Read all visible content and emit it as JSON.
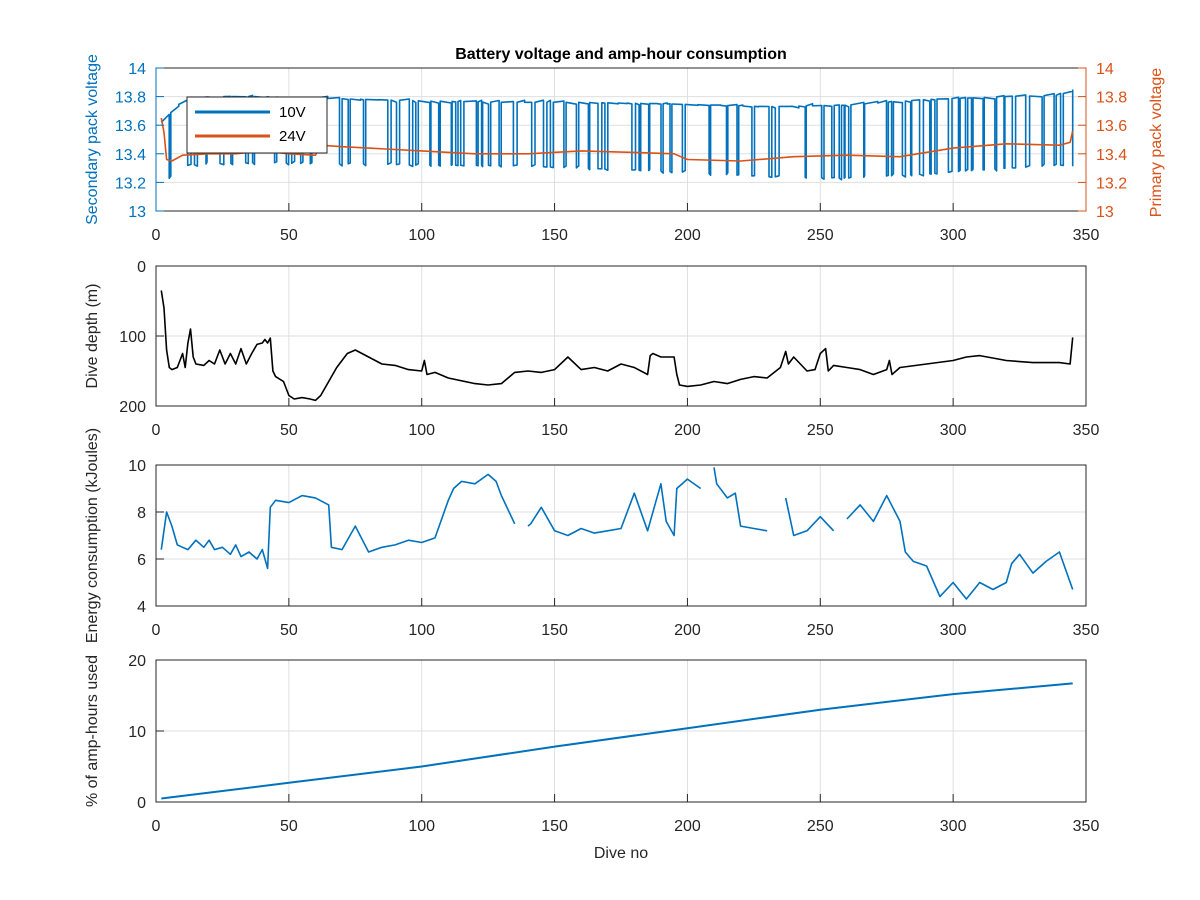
{
  "colors": {
    "blue": "#0072bd",
    "orange": "#d95319",
    "black": "#000000",
    "axis": "#262626",
    "grid": "#dfdfdf"
  },
  "chart_data": [
    {
      "type": "line",
      "title": "Battery voltage and amp-hour consumption",
      "xlabel": "",
      "ylabel": "Secondary pack voltage",
      "ylabel_right": "Primary pack voltage",
      "xlim": [
        0,
        350
      ],
      "ylim": [
        13,
        14
      ],
      "ylim_right": [
        13,
        14
      ],
      "xticks": [
        0,
        50,
        100,
        150,
        200,
        250,
        300,
        350
      ],
      "yticks": [
        13,
        13.2,
        13.4,
        13.6,
        13.8,
        14
      ],
      "yticks_right": [
        13,
        13.2,
        13.4,
        13.6,
        13.8,
        14
      ],
      "grid": true,
      "legend": "top-left",
      "series": [
        {
          "name": "10V",
          "axis": "left",
          "color": "#0072bd",
          "style": "switching",
          "x": [
            2,
            4,
            6,
            8,
            12,
            20,
            40,
            60,
            80,
            100,
            130,
            160,
            190,
            210,
            230,
            260,
            290,
            320,
            340,
            345
          ],
          "high": [
            13.62,
            13.65,
            13.7,
            13.74,
            13.78,
            13.8,
            13.8,
            13.79,
            13.78,
            13.77,
            13.76,
            13.76,
            13.75,
            13.74,
            13.73,
            13.74,
            13.78,
            13.8,
            13.81,
            13.85
          ],
          "low": [
            13.2,
            13.2,
            13.26,
            13.3,
            13.32,
            13.33,
            13.34,
            13.33,
            13.33,
            13.32,
            13.32,
            13.3,
            13.28,
            13.26,
            13.24,
            13.23,
            13.26,
            13.3,
            13.32,
            13.33
          ]
        },
        {
          "name": "24V",
          "axis": "right",
          "color": "#d95319",
          "x": [
            2,
            3,
            4,
            6,
            10,
            20,
            30,
            40,
            50,
            60,
            62,
            70,
            80,
            100,
            120,
            140,
            160,
            180,
            195,
            200,
            220,
            240,
            260,
            280,
            300,
            320,
            340,
            344,
            345
          ],
          "y": [
            13.65,
            13.55,
            13.36,
            13.35,
            13.39,
            13.4,
            13.4,
            13.42,
            13.4,
            13.39,
            13.46,
            13.45,
            13.44,
            13.42,
            13.4,
            13.4,
            13.42,
            13.41,
            13.4,
            13.36,
            13.35,
            13.38,
            13.39,
            13.38,
            13.44,
            13.47,
            13.46,
            13.48,
            13.56
          ]
        }
      ]
    },
    {
      "type": "line",
      "title": "",
      "xlabel": "",
      "ylabel": "Dive depth (m)",
      "xlim": [
        0,
        350
      ],
      "ylim": [
        0,
        200
      ],
      "y_reversed": true,
      "xticks": [
        0,
        50,
        100,
        150,
        200,
        250,
        300,
        350
      ],
      "yticks": [
        0,
        100,
        200
      ],
      "grid": true,
      "series": [
        {
          "color": "#000000",
          "x": [
            2,
            3,
            4,
            5,
            6,
            8,
            10,
            11,
            12,
            13,
            14,
            15,
            18,
            20,
            22,
            24,
            26,
            28,
            30,
            32,
            34,
            36,
            38,
            40,
            41,
            42,
            43,
            44,
            45,
            48,
            50,
            52,
            55,
            58,
            60,
            62,
            65,
            68,
            72,
            75,
            80,
            85,
            90,
            95,
            100,
            101,
            102,
            105,
            110,
            120,
            125,
            130,
            135,
            140,
            145,
            150,
            155,
            160,
            165,
            170,
            175,
            180,
            185,
            186,
            187,
            190,
            195,
            196,
            197,
            200,
            205,
            210,
            215,
            220,
            225,
            230,
            235,
            237,
            238,
            240,
            245,
            248,
            250,
            252,
            253,
            255,
            260,
            265,
            270,
            275,
            276,
            277,
            280,
            290,
            300,
            305,
            310,
            320,
            330,
            340,
            344,
            345
          ],
          "y": [
            35,
            60,
            120,
            145,
            148,
            145,
            125,
            145,
            110,
            90,
            130,
            140,
            142,
            135,
            140,
            120,
            140,
            125,
            140,
            118,
            140,
            125,
            112,
            110,
            105,
            110,
            103,
            150,
            158,
            165,
            185,
            190,
            188,
            190,
            192,
            185,
            165,
            145,
            125,
            120,
            130,
            140,
            142,
            148,
            150,
            135,
            155,
            152,
            160,
            168,
            170,
            168,
            152,
            150,
            152,
            148,
            130,
            148,
            145,
            150,
            140,
            145,
            155,
            128,
            125,
            130,
            130,
            155,
            170,
            172,
            170,
            165,
            168,
            162,
            158,
            160,
            145,
            122,
            140,
            130,
            150,
            148,
            125,
            118,
            150,
            142,
            145,
            148,
            155,
            148,
            135,
            155,
            145,
            140,
            135,
            130,
            128,
            135,
            138,
            138,
            140,
            102
          ]
        }
      ]
    },
    {
      "type": "line",
      "title": "",
      "xlabel": "",
      "ylabel": "Energy consumption (kJoules)",
      "xlim": [
        0,
        350
      ],
      "ylim": [
        4,
        10
      ],
      "xticks": [
        0,
        50,
        100,
        150,
        200,
        250,
        300,
        350
      ],
      "yticks": [
        4,
        6,
        8,
        10
      ],
      "grid": true,
      "series": [
        {
          "color": "#0072bd",
          "segments": [
            {
              "x": [
                2,
                4,
                6,
                8,
                10,
                12,
                15,
                18,
                20,
                22,
                25,
                28,
                30,
                32,
                35,
                38,
                40,
                42,
                43,
                45,
                50,
                55,
                60,
                65,
                66,
                70,
                75,
                80,
                85,
                90,
                95,
                100,
                105,
                110,
                112,
                115,
                120,
                125,
                128,
                130,
                135
              ],
              "y": [
                6.4,
                8.0,
                7.4,
                6.6,
                6.5,
                6.4,
                6.8,
                6.5,
                6.8,
                6.4,
                6.5,
                6.2,
                6.6,
                6.1,
                6.3,
                6.0,
                6.4,
                5.6,
                8.2,
                8.5,
                8.4,
                8.7,
                8.6,
                8.3,
                6.5,
                6.4,
                7.4,
                6.3,
                6.5,
                6.6,
                6.8,
                6.7,
                6.9,
                8.5,
                9.0,
                9.3,
                9.2,
                9.6,
                9.3,
                8.7,
                7.5
              ]
            },
            {
              "x": [
                140,
                141,
                145,
                150,
                155,
                160,
                165,
                170,
                175,
                180,
                185,
                190,
                192,
                195,
                196,
                200,
                205
              ],
              "y": [
                7.4,
                7.5,
                8.2,
                7.2,
                7.0,
                7.3,
                7.1,
                7.2,
                7.3,
                8.8,
                7.2,
                9.2,
                7.6,
                7.0,
                9.0,
                9.4,
                9.0
              ]
            },
            {
              "x": [
                210,
                211,
                215,
                218,
                220,
                225,
                230
              ],
              "y": [
                9.9,
                9.2,
                8.6,
                8.8,
                7.4,
                7.3,
                7.2
              ]
            },
            {
              "x": [
                237,
                240,
                245,
                250,
                255
              ],
              "y": [
                8.6,
                7.0,
                7.2,
                7.8,
                7.2
              ]
            },
            {
              "x": [
                260,
                265,
                270,
                275,
                280,
                282,
                285,
                290,
                295,
                300,
                305,
                310,
                315,
                320,
                322,
                325,
                330,
                335,
                340,
                345
              ],
              "y": [
                7.7,
                8.3,
                7.6,
                8.7,
                7.6,
                6.3,
                5.9,
                5.7,
                4.4,
                5.0,
                4.3,
                5.0,
                4.7,
                5.0,
                5.8,
                6.2,
                5.4,
                5.9,
                6.3,
                4.7
              ]
            }
          ]
        }
      ]
    },
    {
      "type": "line",
      "title": "",
      "xlabel": "Dive no",
      "ylabel": "% of amp-hours used",
      "xlim": [
        0,
        350
      ],
      "ylim": [
        0,
        20
      ],
      "xticks": [
        0,
        50,
        100,
        150,
        200,
        250,
        300,
        350
      ],
      "yticks": [
        0,
        10,
        20
      ],
      "grid": true,
      "series": [
        {
          "color": "#0072bd",
          "x": [
            2,
            50,
            100,
            150,
            200,
            250,
            300,
            345
          ],
          "y": [
            0.5,
            2.7,
            5.0,
            7.8,
            10.4,
            13.0,
            15.2,
            16.7
          ]
        }
      ]
    }
  ]
}
